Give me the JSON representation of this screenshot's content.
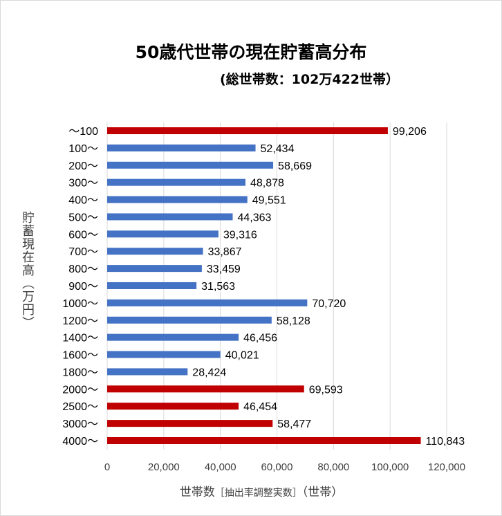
{
  "chart_data": {
    "type": "bar",
    "orientation": "horizontal",
    "title": "50歳代世帯の現在貯蓄高分布",
    "subtitle": "(総世帯数：102万422世帯）",
    "xlabel_main": "世帯数",
    "xlabel_note": "［抽出率調整実数］",
    "xlabel_unit": "（世帯）",
    "ylabel": "貯蓄現在高（万円）",
    "xlim": [
      0,
      120000
    ],
    "xticks": [
      0,
      20000,
      40000,
      60000,
      80000,
      100000,
      120000
    ],
    "xtick_labels": [
      "0",
      "20,000",
      "40,000",
      "60,000",
      "80,000",
      "100,000",
      "120,000"
    ],
    "grid": "vertical",
    "categories": [
      "～100",
      "100～",
      "200～",
      "300～",
      "400～",
      "500～",
      "600～",
      "700～",
      "800～",
      "900～",
      "1000～",
      "1200～",
      "1400～",
      "1600～",
      "1800～",
      "2000～",
      "2500～",
      "3000～",
      "4000～"
    ],
    "values": [
      99206,
      52434,
      58669,
      48878,
      49551,
      44363,
      39316,
      33867,
      33459,
      31563,
      70720,
      58128,
      46456,
      40021,
      28424,
      69593,
      46454,
      58477,
      110843
    ],
    "data_labels": [
      "99,206",
      "52,434",
      "58,669",
      "48,878",
      "49,551",
      "44,363",
      "39,316",
      "33,867",
      "33,459",
      "31,563",
      "70,720",
      "58,128",
      "46,456",
      "40,021",
      "28,424",
      "69,593",
      "46,454",
      "58,477",
      "110,843"
    ],
    "highlighted": [
      true,
      false,
      false,
      false,
      false,
      false,
      false,
      false,
      false,
      false,
      false,
      false,
      false,
      false,
      false,
      true,
      true,
      true,
      true
    ],
    "colors": {
      "highlight": "#C00000",
      "normal": "#4472C4",
      "grid": "#d9d9d9",
      "text": "#404040"
    }
  }
}
